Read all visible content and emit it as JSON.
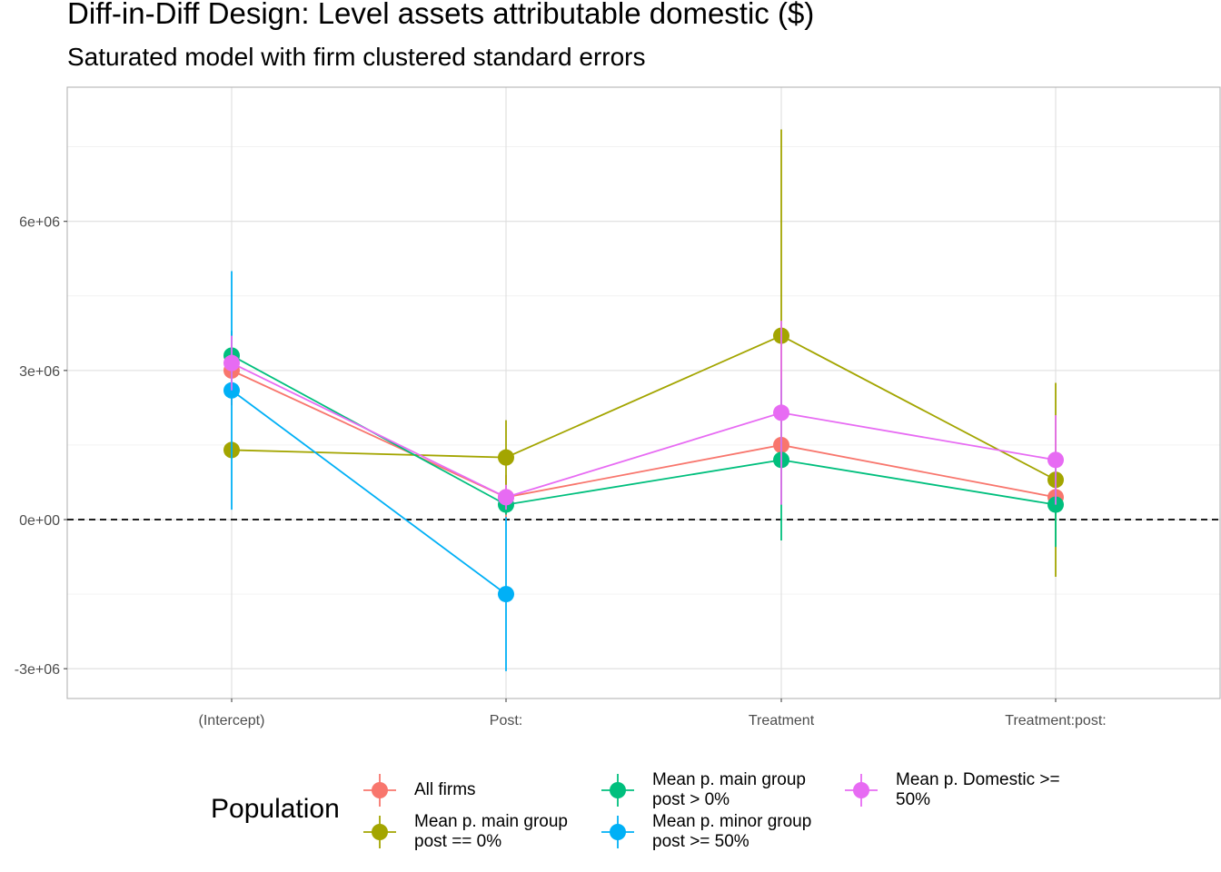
{
  "chart_data": {
    "type": "scatter",
    "title": "Diff-in-Diff Design: Level assets attributable domestic  ($)",
    "subtitle": "Saturated model with firm clustered standard errors",
    "xlabel": "",
    "ylabel": "",
    "categories": [
      "(Intercept)",
      "Post:",
      "Treatment",
      "Treatment:post:"
    ],
    "ylim": [
      -3600000,
      8700000
    ],
    "yticks": [
      {
        "value": -3000000,
        "label": "-3e+06"
      },
      {
        "value": 0,
        "label": "0e+00"
      },
      {
        "value": 3000000,
        "label": "3e+06"
      },
      {
        "value": 6000000,
        "label": "6e+06"
      }
    ],
    "reference_line": 0,
    "grid": true,
    "legend": {
      "title": "Population",
      "position": "bottom"
    },
    "series": [
      {
        "name": "All firms",
        "color": "#F8766D",
        "values": [
          3000000,
          450000,
          1500000,
          450000
        ],
        "lower": [
          2300000,
          0,
          700000,
          0
        ],
        "upper": [
          3700000,
          900000,
          2300000,
          900000
        ]
      },
      {
        "name": "Mean p. main group post == 0%",
        "color": "#A3A500",
        "values": [
          1400000,
          1250000,
          3700000,
          800000
        ],
        "lower": [
          1300000,
          500000,
          300000,
          -1150000
        ],
        "upper": [
          1500000,
          2000000,
          7850000,
          2750000
        ]
      },
      {
        "name": "Mean p. main group post > 0%",
        "color": "#00BF7D",
        "values": [
          3300000,
          300000,
          1200000,
          300000
        ],
        "lower": [
          2800000,
          100000,
          -420000,
          -550000
        ],
        "upper": [
          3800000,
          500000,
          2820000,
          1150000
        ]
      },
      {
        "name": "Mean p. minor group post >= 50%",
        "color": "#00B0F6",
        "values": [
          2600000,
          -1500000,
          null,
          null
        ],
        "lower": [
          200000,
          -3050000,
          null,
          null
        ],
        "upper": [
          5000000,
          50000,
          null,
          null
        ]
      },
      {
        "name": "Mean p. Domestic >= 50%",
        "color": "#E76BF3",
        "values": [
          3150000,
          450000,
          2150000,
          1200000
        ],
        "lower": [
          2600000,
          200000,
          300000,
          300000
        ],
        "upper": [
          3700000,
          700000,
          4000000,
          2100000
        ]
      }
    ]
  }
}
